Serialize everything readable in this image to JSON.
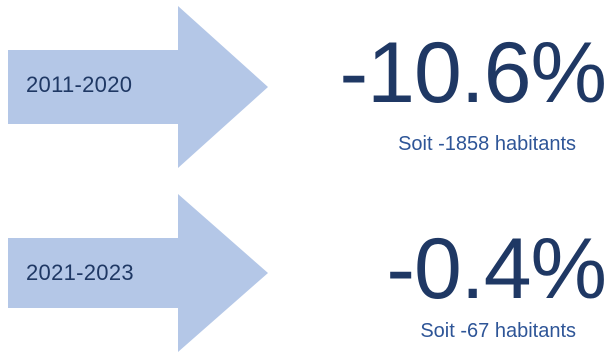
{
  "stats": [
    {
      "period": "2011-2020",
      "change": "-10.6%",
      "detail": "Soit -1858 habitants"
    },
    {
      "period": "2021-2023",
      "change": "-0.4%",
      "detail": "Soit -67 habitants"
    }
  ],
  "colors": {
    "arrow_fill": "#b4c7e7",
    "text_dark": "#1f3864",
    "text_mid": "#2e5597"
  },
  "icons": {
    "arrow": "right-arrow-icon"
  }
}
